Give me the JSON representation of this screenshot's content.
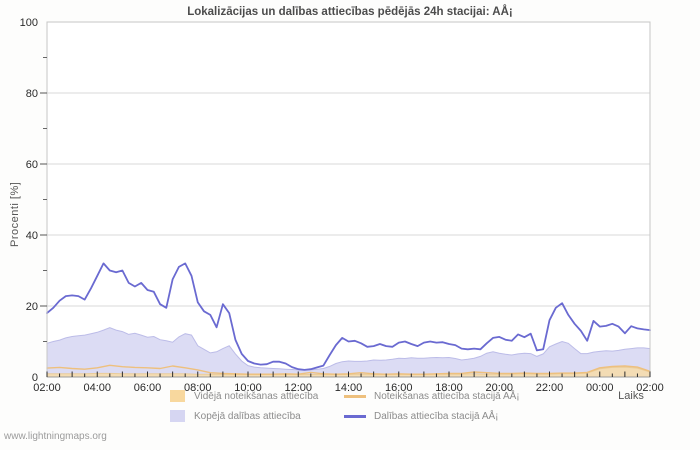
{
  "page": {
    "watermark": "www.lightningmaps.org"
  },
  "legend": {
    "items": [
      {
        "label": "Vidējā noteikšanas attiecība",
        "type": "area",
        "color": "#f8d89e"
      },
      {
        "label": "Noteikšanas attiecība stacijā AÅ¡",
        "type": "line",
        "color": "#eec07d"
      },
      {
        "label": "Kopējā dalības attiecība",
        "type": "area",
        "color": "#d6d6f2"
      },
      {
        "label": "Dalības attiecība stacijā AÅ¡",
        "type": "line",
        "color": "#6a6ad1"
      }
    ]
  },
  "chart_data": {
    "type": "area",
    "title": "Lokalizācijas un dalības attiecības pēdējās 24h stacijai: AÅ¡",
    "xlabel": "Laiks",
    "ylabel": "Procenti  [%]",
    "ylim": [
      0,
      100
    ],
    "grid_values": [
      20,
      40,
      60,
      80
    ],
    "y_ticks": [
      0,
      20,
      40,
      60,
      80,
      100
    ],
    "y_minor_ticks": [
      10,
      30,
      50,
      70,
      90
    ],
    "x_hours": 24,
    "x_tick_labels": [
      "02:00",
      "04:00",
      "06:00",
      "08:00",
      "10:00",
      "12:00",
      "14:00",
      "16:00",
      "18:00",
      "20:00",
      "22:00",
      "00:00",
      "02:00"
    ],
    "legend_position": "bottom",
    "grid": "horizontal-only",
    "series": [
      {
        "name": "Kopējā dalības attiecība",
        "kind": "area",
        "fill": "#dcdcf4",
        "edge": "#bcbce8",
        "opacity": 1,
        "interval_minutes": 15,
        "start": "02:00",
        "values": [
          9.5,
          10.0,
          10.4,
          11.0,
          11.4,
          11.6,
          11.8,
          12.2,
          12.6,
          13.2,
          13.9,
          13.2,
          12.8,
          12.0,
          12.3,
          11.8,
          11.2,
          11.4,
          10.5,
          10.2,
          9.8,
          11.3,
          12.2,
          11.8,
          8.8,
          7.8,
          6.8,
          7.1,
          8.0,
          8.8,
          6.5,
          4.5,
          3.2,
          2.8,
          2.6,
          2.5,
          2.4,
          2.3,
          2.2,
          2.1,
          2.0,
          2.0,
          2.0,
          2.2,
          2.4,
          3.0,
          3.8,
          4.3,
          4.5,
          4.4,
          4.4,
          4.5,
          4.8,
          4.7,
          4.8,
          5.0,
          5.3,
          5.2,
          5.4,
          5.3,
          5.3,
          5.4,
          5.5,
          5.4,
          5.5,
          5.2,
          4.8,
          5.0,
          5.3,
          5.8,
          6.7,
          7.1,
          6.7,
          6.4,
          6.2,
          6.5,
          6.7,
          6.6,
          5.8,
          6.5,
          8.5,
          9.3,
          10.0,
          9.5,
          8.0,
          6.6,
          6.6,
          7.0,
          7.2,
          7.4,
          7.3,
          7.5,
          7.8,
          8.0,
          8.2,
          8.2,
          8.0
        ]
      },
      {
        "name": "Vidējā noteikšanas attiecība",
        "kind": "area",
        "fill": "#f6dcab",
        "edge": "#e9c992",
        "opacity": 0.88,
        "interval_minutes": 30,
        "start": "02:00",
        "values": [
          0.9,
          0.9,
          0.9,
          0.9,
          1.0,
          1.0,
          0.9,
          0.9,
          0.9,
          0.9,
          0.9,
          0.9,
          0.8,
          0.8,
          0.7,
          0.7,
          0.7,
          0.7,
          0.7,
          0.7,
          0.7,
          0.7,
          0.7,
          0.7,
          0.7,
          0.8,
          0.7,
          0.7,
          0.8,
          0.7,
          0.7,
          0.8,
          0.8,
          0.8,
          0.9,
          0.8,
          0.8,
          0.8,
          0.9,
          0.8,
          0.8,
          0.9,
          0.9,
          1.1,
          2.3,
          2.7,
          2.8,
          2.5,
          1.4
        ]
      },
      {
        "name": "Noteikšanas attiecība stacijā AÅ¡",
        "kind": "line",
        "color": "#eec07d",
        "width": 1.4,
        "interval_minutes": 30,
        "start": "02:00",
        "values": [
          2.5,
          2.7,
          2.4,
          2.2,
          2.6,
          3.3,
          2.9,
          2.7,
          2.6,
          2.4,
          3.1,
          2.6,
          2.0,
          1.2,
          1.0,
          0.9,
          0.8,
          0.8,
          0.8,
          0.9,
          0.8,
          1.3,
          0.9,
          0.8,
          0.9,
          1.2,
          0.9,
          0.8,
          0.9,
          0.8,
          0.8,
          0.9,
          1.0,
          1.0,
          1.4,
          1.2,
          1.0,
          1.0,
          1.1,
          1.0,
          1.0,
          1.1,
          1.1,
          1.3,
          2.6,
          3.0,
          3.1,
          2.8,
          1.6
        ]
      },
      {
        "name": "Dalības attiecība stacijā AÅ¡",
        "kind": "line",
        "color": "#6a6ad1",
        "width": 1.8,
        "interval_minutes": 15,
        "start": "02:00",
        "values": [
          18.0,
          19.5,
          21.5,
          22.8,
          23.0,
          22.8,
          21.8,
          25.0,
          28.5,
          32.0,
          30.0,
          29.5,
          30.0,
          26.5,
          25.5,
          26.5,
          24.5,
          24.0,
          20.5,
          19.5,
          27.5,
          31.0,
          32.0,
          28.5,
          21.0,
          18.5,
          17.5,
          14.0,
          20.5,
          18.0,
          10.5,
          6.5,
          4.5,
          3.8,
          3.5,
          3.6,
          4.3,
          4.3,
          3.8,
          2.8,
          2.2,
          2.0,
          2.2,
          2.7,
          3.2,
          6.2,
          9.0,
          11.0,
          10.0,
          10.2,
          9.5,
          8.5,
          8.7,
          9.3,
          8.7,
          8.5,
          9.7,
          10.0,
          9.3,
          8.7,
          9.7,
          10.0,
          9.7,
          9.8,
          9.3,
          9.0,
          8.0,
          7.8,
          8.0,
          7.8,
          9.5,
          11.0,
          11.3,
          10.5,
          10.2,
          12.0,
          11.2,
          12.2,
          7.5,
          7.8,
          16.0,
          19.5,
          20.8,
          17.5,
          15.0,
          13.0,
          10.2,
          15.8,
          14.2,
          14.4,
          15.0,
          14.2,
          12.3,
          14.3,
          13.7,
          13.4,
          13.2
        ]
      }
    ],
    "colors": {
      "grid": "#dadada",
      "border": "#c6c6c6",
      "tick": "#2b2b2b",
      "tick_label": "#2b2b2b",
      "title": "#4c4c4c",
      "axis_label": "#555555",
      "plot_bg": "#ffffff"
    }
  }
}
